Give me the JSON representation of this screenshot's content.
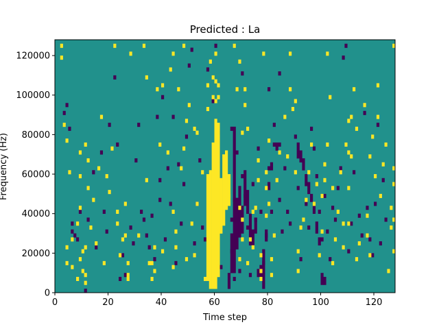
{
  "chart_data": {
    "type": "heatmap",
    "title": "Predicted : La",
    "xlabel": "Time step",
    "ylabel": "Frequency (Hz)",
    "xlim": [
      0,
      128
    ],
    "ylim": [
      0,
      128000
    ],
    "bin_width_hz": 2000,
    "xticks": [
      0,
      20,
      40,
      60,
      80,
      100,
      120
    ],
    "yticks": [
      0,
      20000,
      40000,
      60000,
      80000,
      100000,
      120000
    ],
    "colors": {
      "background": "#21918c",
      "high": "#fde725",
      "low": "#440154"
    },
    "high_cells": [
      [
        2,
        124000
      ],
      [
        2,
        118000
      ],
      [
        3,
        84000
      ],
      [
        4,
        76000
      ],
      [
        4,
        22000
      ],
      [
        4,
        14000
      ],
      [
        5,
        60000
      ],
      [
        6,
        12000
      ],
      [
        6,
        26000
      ],
      [
        8,
        34000
      ],
      [
        8,
        6000
      ],
      [
        9,
        16000
      ],
      [
        9,
        42000
      ],
      [
        9,
        58000
      ],
      [
        9,
        70000
      ],
      [
        10,
        20000
      ],
      [
        10,
        10000
      ],
      [
        11,
        8000
      ],
      [
        11,
        4000
      ],
      [
        11,
        22000
      ],
      [
        11,
        74000
      ],
      [
        12,
        66000
      ],
      [
        12,
        52000
      ],
      [
        13,
        32000
      ],
      [
        14,
        46000
      ],
      [
        15,
        24000
      ],
      [
        16,
        62000
      ],
      [
        17,
        88000
      ],
      [
        18,
        14000
      ],
      [
        19,
        58000
      ],
      [
        20,
        50000
      ],
      [
        21,
        72000
      ],
      [
        22,
        124000
      ],
      [
        23,
        40000
      ],
      [
        23,
        34000
      ],
      [
        24,
        18000
      ],
      [
        25,
        26000
      ],
      [
        26,
        28000
      ],
      [
        26,
        44000
      ],
      [
        27,
        14000
      ],
      [
        27,
        8000
      ],
      [
        27,
        6000
      ],
      [
        28,
        120000
      ],
      [
        31,
        28000
      ],
      [
        33,
        124000
      ],
      [
        34,
        108000
      ],
      [
        34,
        56000
      ],
      [
        35,
        14000
      ],
      [
        36,
        6000
      ],
      [
        36,
        14000
      ],
      [
        37,
        10000
      ],
      [
        37,
        22000
      ],
      [
        38,
        102000
      ],
      [
        39,
        74000
      ],
      [
        40,
        20000
      ],
      [
        40,
        104000
      ],
      [
        42,
        70000
      ],
      [
        43,
        112000
      ],
      [
        44,
        120000
      ],
      [
        44,
        40000
      ],
      [
        44,
        12000
      ],
      [
        45,
        30000
      ],
      [
        45,
        22000
      ],
      [
        46,
        102000
      ],
      [
        47,
        62000
      ],
      [
        48,
        124000
      ],
      [
        48,
        72000
      ],
      [
        49,
        86000
      ],
      [
        49,
        16000
      ],
      [
        50,
        94000
      ],
      [
        51,
        34000
      ],
      [
        52,
        18000
      ],
      [
        52,
        82000
      ],
      [
        53,
        80000
      ],
      [
        53,
        44000
      ],
      [
        55,
        60000
      ],
      [
        57,
        104000
      ],
      [
        57,
        92000
      ],
      [
        58,
        116000
      ],
      [
        59,
        108000
      ],
      [
        59,
        98000
      ],
      [
        60,
        120000
      ],
      [
        60,
        96000
      ],
      [
        60,
        106000
      ],
      [
        61,
        98000
      ],
      [
        61,
        104000
      ],
      [
        65,
        48000
      ],
      [
        65,
        58000
      ],
      [
        67,
        124000
      ],
      [
        68,
        102000
      ],
      [
        69,
        116000
      ],
      [
        69,
        16000
      ],
      [
        69,
        42000
      ],
      [
        70,
        80000
      ],
      [
        70,
        36000
      ],
      [
        70,
        26000
      ],
      [
        71,
        94000
      ],
      [
        71,
        102000
      ],
      [
        72,
        82000
      ],
      [
        72,
        14000
      ],
      [
        73,
        26000
      ],
      [
        74,
        40000
      ],
      [
        74,
        22000
      ],
      [
        75,
        42000
      ],
      [
        76,
        66000
      ],
      [
        76,
        56000
      ],
      [
        77,
        18000
      ],
      [
        77,
        6000
      ],
      [
        77,
        10000
      ],
      [
        78,
        120000
      ],
      [
        79,
        60000
      ],
      [
        79,
        52000
      ],
      [
        79,
        38000
      ],
      [
        80,
        76000
      ],
      [
        80,
        44000
      ],
      [
        81,
        16000
      ],
      [
        81,
        8000
      ],
      [
        82,
        28000
      ],
      [
        83,
        56000
      ],
      [
        84,
        70000
      ],
      [
        86,
        88000
      ],
      [
        87,
        68000
      ],
      [
        88,
        102000
      ],
      [
        88,
        120000
      ],
      [
        89,
        92000
      ],
      [
        90,
        96000
      ],
      [
        90,
        60000
      ],
      [
        91,
        20000
      ],
      [
        91,
        10000
      ],
      [
        92,
        32000
      ],
      [
        93,
        36000
      ],
      [
        94,
        46000
      ],
      [
        95,
        60000
      ],
      [
        96,
        74000
      ],
      [
        97,
        44000
      ],
      [
        98,
        54000
      ],
      [
        99,
        18000
      ],
      [
        100,
        30000
      ],
      [
        100,
        48000
      ],
      [
        101,
        64000
      ],
      [
        101,
        56000
      ],
      [
        102,
        74000
      ],
      [
        102,
        120000
      ],
      [
        103,
        98000
      ],
      [
        104,
        14000
      ],
      [
        104,
        52000
      ],
      [
        105,
        26000
      ],
      [
        106,
        40000
      ],
      [
        107,
        60000
      ],
      [
        108,
        34000
      ],
      [
        108,
        22000
      ],
      [
        109,
        74000
      ],
      [
        110,
        52000
      ],
      [
        110,
        34000
      ],
      [
        110,
        70000
      ],
      [
        110,
        86000
      ],
      [
        111,
        88000
      ],
      [
        111,
        68000
      ],
      [
        112,
        102000
      ],
      [
        113,
        82000
      ],
      [
        113,
        16000
      ],
      [
        114,
        24000
      ],
      [
        116,
        94000
      ],
      [
        117,
        38000
      ],
      [
        117,
        28000
      ],
      [
        118,
        68000
      ],
      [
        118,
        18000
      ],
      [
        119,
        78000
      ],
      [
        120,
        58000
      ],
      [
        121,
        104000
      ],
      [
        121,
        88000
      ],
      [
        122,
        48000
      ],
      [
        123,
        64000
      ],
      [
        124,
        74000
      ],
      [
        125,
        10000
      ],
      [
        126,
        42000
      ],
      [
        126,
        32000
      ],
      [
        127,
        62000
      ],
      [
        127,
        20000
      ],
      [
        127,
        54000
      ],
      [
        127,
        36000
      ],
      [
        127,
        124000
      ]
    ],
    "high_columns": [
      {
        "x": 56,
        "from": 6000,
        "to": 8000
      },
      {
        "x": 57,
        "from": 6000,
        "to": 60000
      },
      {
        "x": 58,
        "from": 2000,
        "to": 62000
      },
      {
        "x": 59,
        "from": 2000,
        "to": 76000
      },
      {
        "x": 60,
        "from": 2000,
        "to": 88000
      },
      {
        "x": 61,
        "from": 8000,
        "to": 86000
      },
      {
        "x": 62,
        "from": 30000,
        "to": 58000
      },
      {
        "x": 63,
        "from": 34000,
        "to": 70000
      },
      {
        "x": 64,
        "from": 42000,
        "to": 72000
      },
      {
        "x": 65,
        "from": 44000,
        "to": 58000
      }
    ],
    "low_cells": [
      [
        11,
        0
      ],
      [
        3,
        90000
      ],
      [
        4,
        94000
      ],
      [
        5,
        82000
      ],
      [
        6,
        34000
      ],
      [
        6,
        30000
      ],
      [
        7,
        28000
      ],
      [
        8,
        26000
      ],
      [
        9,
        40000
      ],
      [
        12,
        36000
      ],
      [
        14,
        60000
      ],
      [
        15,
        22000
      ],
      [
        17,
        70000
      ],
      [
        18,
        40000
      ],
      [
        19,
        30000
      ],
      [
        20,
        84000
      ],
      [
        22,
        108000
      ],
      [
        23,
        74000
      ],
      [
        24,
        6000
      ],
      [
        25,
        18000
      ],
      [
        26,
        8000
      ],
      [
        28,
        32000
      ],
      [
        29,
        24000
      ],
      [
        30,
        66000
      ],
      [
        31,
        84000
      ],
      [
        32,
        40000
      ],
      [
        33,
        36000
      ],
      [
        34,
        28000
      ],
      [
        35,
        22000
      ],
      [
        36,
        38000
      ],
      [
        37,
        16000
      ],
      [
        38,
        88000
      ],
      [
        39,
        46000
      ],
      [
        39,
        56000
      ],
      [
        40,
        98000
      ],
      [
        41,
        26000
      ],
      [
        42,
        62000
      ],
      [
        43,
        44000
      ],
      [
        44,
        88000
      ],
      [
        45,
        14000
      ],
      [
        46,
        64000
      ],
      [
        47,
        34000
      ],
      [
        48,
        54000
      ],
      [
        49,
        78000
      ],
      [
        50,
        114000
      ],
      [
        51,
        122000
      ],
      [
        52,
        24000
      ],
      [
        53,
        44000
      ],
      [
        54,
        66000
      ],
      [
        55,
        32000
      ],
      [
        56,
        26000
      ],
      [
        57,
        112000
      ],
      [
        58,
        6000
      ],
      [
        59,
        96000
      ],
      [
        60,
        124000
      ],
      [
        61,
        80000
      ],
      [
        62,
        12000
      ],
      [
        63,
        44000
      ],
      [
        64,
        50000
      ],
      [
        66,
        82000
      ],
      [
        66,
        36000
      ],
      [
        66,
        20000
      ],
      [
        67,
        6000
      ],
      [
        67,
        46000
      ],
      [
        68,
        70000
      ],
      [
        68,
        28000
      ],
      [
        69,
        10000
      ],
      [
        70,
        110000
      ],
      [
        70,
        58000
      ],
      [
        71,
        48000
      ],
      [
        72,
        32000
      ],
      [
        73,
        8000
      ],
      [
        74,
        54000
      ],
      [
        75,
        36000
      ],
      [
        76,
        72000
      ],
      [
        77,
        40000
      ],
      [
        78,
        14000
      ],
      [
        79,
        28000
      ],
      [
        80,
        102000
      ],
      [
        80,
        62000
      ],
      [
        81,
        40000
      ],
      [
        82,
        84000
      ],
      [
        83,
        72000
      ],
      [
        84,
        110000
      ],
      [
        84,
        46000
      ],
      [
        85,
        30000
      ],
      [
        86,
        62000
      ],
      [
        87,
        40000
      ],
      [
        88,
        34000
      ],
      [
        90,
        78000
      ],
      [
        91,
        52000
      ],
      [
        92,
        16000
      ],
      [
        93,
        66000
      ],
      [
        94,
        44000
      ],
      [
        95,
        32000
      ],
      [
        96,
        82000
      ],
      [
        97,
        72000
      ],
      [
        98,
        58000
      ],
      [
        99,
        40000
      ],
      [
        100,
        26000
      ],
      [
        101,
        48000
      ],
      [
        102,
        30000
      ],
      [
        103,
        16000
      ],
      [
        104,
        42000
      ],
      [
        105,
        36000
      ],
      [
        106,
        52000
      ],
      [
        107,
        62000
      ],
      [
        108,
        118000
      ],
      [
        109,
        124000
      ],
      [
        110,
        20000
      ],
      [
        111,
        34000
      ],
      [
        112,
        60000
      ],
      [
        114,
        38000
      ],
      [
        115,
        28000
      ],
      [
        116,
        90000
      ],
      [
        117,
        42000
      ],
      [
        118,
        26000
      ],
      [
        119,
        18000
      ],
      [
        120,
        44000
      ],
      [
        121,
        84000
      ],
      [
        122,
        24000
      ],
      [
        123,
        56000
      ],
      [
        124,
        36000
      ]
    ],
    "low_columns": [
      {
        "x": 65,
        "from": 2000,
        "to": 10000
      },
      {
        "x": 66,
        "from": 10000,
        "to": 30000
      },
      {
        "x": 67,
        "from": 10000,
        "to": 84000
      },
      {
        "x": 68,
        "from": 22000,
        "to": 48000
      },
      {
        "x": 69,
        "from": 28000,
        "to": 54000
      },
      {
        "x": 70,
        "from": 30000,
        "to": 44000
      },
      {
        "x": 71,
        "from": 44000,
        "to": 62000
      },
      {
        "x": 72,
        "from": 40000,
        "to": 52000
      },
      {
        "x": 73,
        "from": 24000,
        "to": 40000
      },
      {
        "x": 74,
        "from": 24000,
        "to": 32000
      },
      {
        "x": 75,
        "from": 30000,
        "to": 38000
      },
      {
        "x": 76,
        "from": 8000,
        "to": 12000
      },
      {
        "x": 77,
        "from": 8000,
        "to": 14000
      },
      {
        "x": 78,
        "from": 2000,
        "to": 22000
      },
      {
        "x": 79,
        "from": 26000,
        "to": 32000
      },
      {
        "x": 80,
        "from": 52000,
        "to": 56000
      },
      {
        "x": 81,
        "from": 62000,
        "to": 66000
      },
      {
        "x": 82,
        "from": 74000,
        "to": 76000
      },
      {
        "x": 83,
        "from": 74000,
        "to": 76000
      },
      {
        "x": 84,
        "from": 74000,
        "to": 76000
      },
      {
        "x": 91,
        "from": 68000,
        "to": 76000
      },
      {
        "x": 92,
        "from": 66000,
        "to": 72000
      },
      {
        "x": 93,
        "from": 62000,
        "to": 66000
      },
      {
        "x": 94,
        "from": 54000,
        "to": 60000
      },
      {
        "x": 95,
        "from": 50000,
        "to": 56000
      },
      {
        "x": 96,
        "from": 46000,
        "to": 50000
      },
      {
        "x": 97,
        "from": 40000,
        "to": 46000
      },
      {
        "x": 98,
        "from": 30000,
        "to": 36000
      },
      {
        "x": 99,
        "from": 24000,
        "to": 28000
      },
      {
        "x": 100,
        "from": 4000,
        "to": 10000
      },
      {
        "x": 101,
        "from": 4000,
        "to": 8000
      }
    ]
  }
}
